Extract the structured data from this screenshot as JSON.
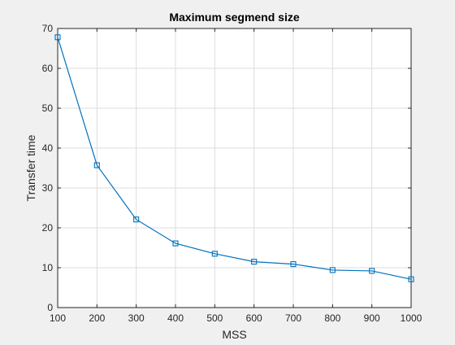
{
  "chart_data": {
    "type": "line",
    "title": "Maximum segmend size",
    "xlabel": "MSS",
    "ylabel": "Transfer time",
    "x": [
      100,
      200,
      300,
      400,
      500,
      600,
      700,
      800,
      900,
      1000
    ],
    "series": [
      {
        "values": [
          67.8,
          35.7,
          22.1,
          16.1,
          13.5,
          11.5,
          10.9,
          9.4,
          9.2,
          7.1
        ],
        "color": "#0072bd",
        "marker": "square"
      }
    ],
    "xlim": [
      100,
      1000
    ],
    "ylim": [
      0,
      70
    ],
    "xticks": [
      100,
      200,
      300,
      400,
      500,
      600,
      700,
      800,
      900,
      1000
    ],
    "yticks": [
      0,
      10,
      20,
      30,
      40,
      50,
      60,
      70
    ],
    "grid": true,
    "legend": "none",
    "background": "#f0f0f0",
    "plot_background": "#ffffff"
  }
}
